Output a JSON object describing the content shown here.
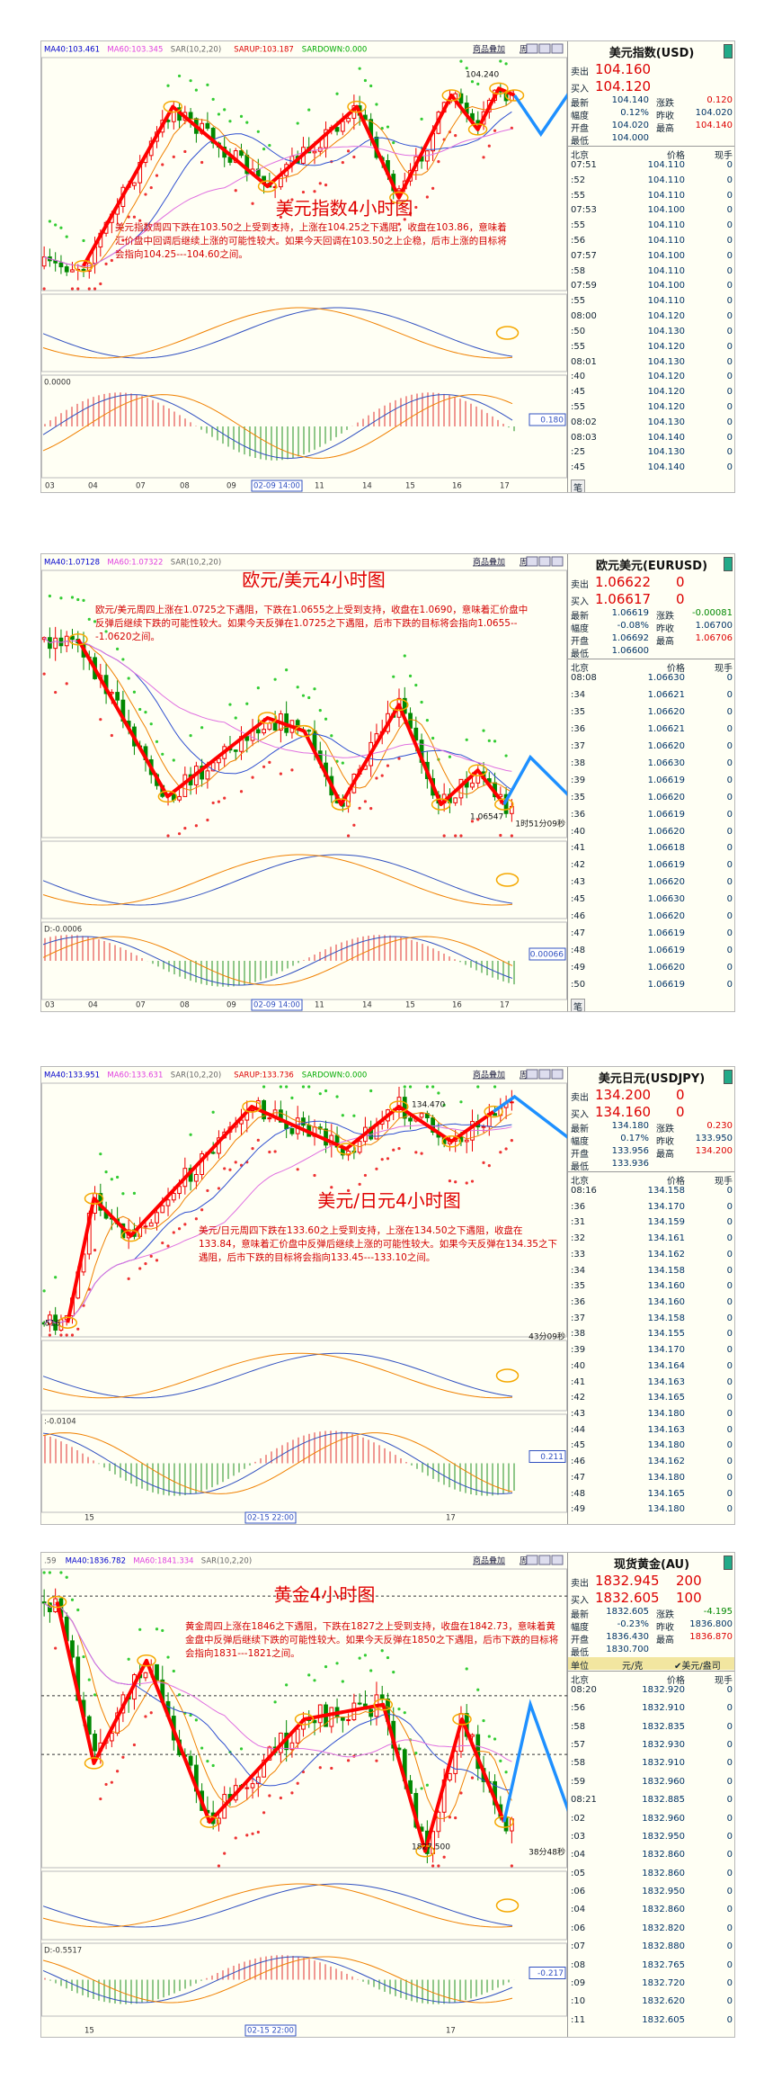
{
  "panels": [
    {
      "toolbar": [
        "商品叠加",
        "周期"
      ],
      "indicators": [
        "MA40:103.461",
        "MA60:103.345",
        "SAR(10,2,20)",
        "SARUP:103.187",
        "SARDOWN:0.000"
      ],
      "title": "美元指数4小时图",
      "commentary": "美元指数周四下跌在103.50之上受到支持，上涨在104.25之下遇阻，收盘在103.86，意味着汇价盘中回调后继续上涨的可能性较大。如果今天回调在103.50之上企稳，后市上涨的目标将会指向104.25---104.60之间。",
      "annotations": [
        "104.240"
      ],
      "macd_label": "0.0000",
      "macd_value": "0.180",
      "x_labels": [
        "03",
        "04",
        "07",
        "08",
        "09",
        "02-09 14:00",
        "11",
        "14",
        "15",
        "16",
        "17"
      ],
      "quote": {
        "name": "美元指数(USD)",
        "sell": [
          "卖出",
          "104.160"
        ],
        "buy": [
          "买入",
          "104.120"
        ],
        "stats": [
          [
            "最新",
            "104.140",
            "涨跌",
            "0.120"
          ],
          [
            "幅度",
            "0.12%",
            "昨收",
            "104.020"
          ],
          [
            "开盘",
            "104.020",
            "最高",
            "104.140"
          ],
          [
            "最低",
            "104.000"
          ]
        ],
        "header": [
          "北京",
          "价格",
          "现手"
        ],
        "rows": [
          [
            "07:51",
            "104.110",
            "0"
          ],
          [
            ":52",
            "104.110",
            "0"
          ],
          [
            ":55",
            "104.110",
            "0"
          ],
          [
            "07:53",
            "104.100",
            "0"
          ],
          [
            ":55",
            "104.110",
            "0"
          ],
          [
            ":56",
            "104.110",
            "0"
          ],
          [
            "07:57",
            "104.100",
            "0"
          ],
          [
            ":58",
            "104.110",
            "0"
          ],
          [
            "07:59",
            "104.100",
            "0"
          ],
          [
            ":55",
            "104.110",
            "0"
          ],
          [
            "08:00",
            "104.120",
            "0"
          ],
          [
            ":50",
            "104.130",
            "0"
          ],
          [
            ":55",
            "104.120",
            "0"
          ],
          [
            "08:01",
            "104.130",
            "0"
          ],
          [
            ":40",
            "104.120",
            "0"
          ],
          [
            ":45",
            "104.120",
            "0"
          ],
          [
            ":55",
            "104.120",
            "0"
          ],
          [
            "08:02",
            "104.130",
            "0"
          ],
          [
            "08:03",
            "104.140",
            "0"
          ],
          [
            ":25",
            "104.130",
            "0"
          ],
          [
            ":45",
            "104.140",
            "0"
          ]
        ],
        "footer": "笔"
      }
    },
    {
      "toolbar": [
        "商品叠加",
        "周期"
      ],
      "indicators": [
        "MA40:1.07128",
        "MA60:1.07322",
        "SAR(10,2,20)"
      ],
      "title": "欧元/美元4小时图",
      "commentary": "欧元/美元周四上涨在1.0725之下遇阻，下跌在1.0655之上受到支持，收盘在1.0690，意味着汇价盘中反弹后继续下跌的可能性较大。如果今天反弹在1.0725之下遇阻，后市下跌的目标将会指向1.0655---1.0620之间。",
      "annotations": [
        "1.06547",
        "1时51分09秒"
      ],
      "macd_label": "D:-0.0006",
      "macd_value": "0.00066",
      "x_labels": [
        "03",
        "04",
        "07",
        "08",
        "09",
        "02-09 14:00",
        "11",
        "14",
        "15",
        "16",
        "17"
      ],
      "quote": {
        "name": "欧元美元(EURUSD)",
        "sell": [
          "卖出",
          "1.06622",
          "0"
        ],
        "buy": [
          "买入",
          "1.06617",
          "0"
        ],
        "stats": [
          [
            "最新",
            "1.06619",
            "涨跌",
            "-0.00081"
          ],
          [
            "幅度",
            "-0.08%",
            "昨收",
            "1.06700"
          ],
          [
            "开盘",
            "1.06692",
            "最高",
            "1.06706"
          ],
          [
            "最低",
            "1.06600"
          ]
        ],
        "header": [
          "北京",
          "价格",
          "现手"
        ],
        "rows": [
          [
            "08:08",
            "1.06630",
            "0"
          ],
          [
            ":34",
            "1.06621",
            "0"
          ],
          [
            ":35",
            "1.06620",
            "0"
          ],
          [
            ":36",
            "1.06621",
            "0"
          ],
          [
            ":37",
            "1.06620",
            "0"
          ],
          [
            ":38",
            "1.06630",
            "0"
          ],
          [
            ":39",
            "1.06619",
            "0"
          ],
          [
            ":35",
            "1.06620",
            "0"
          ],
          [
            ":36",
            "1.06619",
            "0"
          ],
          [
            ":40",
            "1.06620",
            "0"
          ],
          [
            ":41",
            "1.06618",
            "0"
          ],
          [
            ":42",
            "1.06619",
            "0"
          ],
          [
            ":43",
            "1.06620",
            "0"
          ],
          [
            ":45",
            "1.06630",
            "0"
          ],
          [
            ":46",
            "1.06620",
            "0"
          ],
          [
            ":47",
            "1.06619",
            "0"
          ],
          [
            ":48",
            "1.06619",
            "0"
          ],
          [
            ":49",
            "1.06620",
            "0"
          ],
          [
            ":50",
            "1.06619",
            "0"
          ]
        ],
        "footer": "笔"
      }
    },
    {
      "toolbar": [
        "商品叠加",
        "周期"
      ],
      "indicators": [
        "MA40:133.951",
        "MA60:133.631",
        "SAR(10,2,20)",
        "SARUP:133.736",
        "SARDOWN:0.000"
      ],
      "title": "美元/日元4小时图",
      "commentary": "美元/日元周四下跌在133.60之上受到支持，上涨在134.50之下遇阻，收盘在133.84，意味着汇价盘中反弹后继续上涨的可能性较大。如果今天反弹在134.35之下遇阻，后市下跌的目标将会指向133.45---133.10之间。",
      "annotations": [
        "134.470",
        "516",
        "43分09秒"
      ],
      "macd_label": ":-0.0104",
      "macd_value": "0.211",
      "x_labels": [
        "15",
        "02-15 22:00",
        "17"
      ],
      "quote": {
        "name": "美元日元(USDJPY)",
        "sell": [
          "卖出",
          "134.200",
          "0"
        ],
        "buy": [
          "买入",
          "134.160",
          "0"
        ],
        "stats": [
          [
            "最新",
            "134.180",
            "涨跌",
            "0.230"
          ],
          [
            "幅度",
            "0.17%",
            "昨收",
            "133.950"
          ],
          [
            "开盘",
            "133.956",
            "最高",
            "134.200"
          ],
          [
            "最低",
            "133.936"
          ]
        ],
        "header": [
          "北京",
          "价格",
          "现手"
        ],
        "rows": [
          [
            "08:16",
            "134.158",
            "0"
          ],
          [
            ":36",
            "134.170",
            "0"
          ],
          [
            ":31",
            "134.159",
            "0"
          ],
          [
            ":32",
            "134.161",
            "0"
          ],
          [
            ":33",
            "134.162",
            "0"
          ],
          [
            ":34",
            "134.158",
            "0"
          ],
          [
            ":35",
            "134.160",
            "0"
          ],
          [
            ":36",
            "134.160",
            "0"
          ],
          [
            ":37",
            "134.158",
            "0"
          ],
          [
            ":38",
            "134.155",
            "0"
          ],
          [
            ":39",
            "134.170",
            "0"
          ],
          [
            ":40",
            "134.164",
            "0"
          ],
          [
            ":41",
            "134.163",
            "0"
          ],
          [
            ":42",
            "134.165",
            "0"
          ],
          [
            ":43",
            "134.180",
            "0"
          ],
          [
            ":44",
            "134.163",
            "0"
          ],
          [
            ":45",
            "134.180",
            "0"
          ],
          [
            ":46",
            "134.162",
            "0"
          ],
          [
            ":47",
            "134.180",
            "0"
          ],
          [
            ":48",
            "134.165",
            "0"
          ],
          [
            ":49",
            "134.180",
            "0"
          ]
        ]
      }
    },
    {
      "toolbar": [
        "商品叠加",
        "周期"
      ],
      "indicators": [
        ".59",
        "MA40:1836.782",
        "MA60:1841.334",
        "SAR(10,2,20)"
      ],
      "title": "黄金4小时图",
      "commentary": "黄金周四上涨在1846之下遇阻，下跌在1827之上受到支持，收盘在1842.73，意味着黄金盘中反弹后继续下跌的可能性较大。如果今天反弹在1850之下遇阻，后市下跌的目标将会指向1831---1821之间。",
      "annotations": [
        "1827.500",
        "38分48秒"
      ],
      "macd_label": "D:-0.5517",
      "macd_value": "-0.217",
      "x_labels": [
        "15",
        "02-15 22:00",
        "17"
      ],
      "quote": {
        "name": "现货黄金(AU)",
        "sell": [
          "卖出",
          "1832.945",
          "200"
        ],
        "buy": [
          "买入",
          "1832.605",
          "100"
        ],
        "stats": [
          [
            "最新",
            "1832.605",
            "涨跌",
            "-4.195"
          ],
          [
            "幅度",
            "-0.23%",
            "昨收",
            "1836.800"
          ],
          [
            "开盘",
            "1836.430",
            "最高",
            "1836.870"
          ],
          [
            "最低",
            "1830.700"
          ]
        ],
        "unit": [
          "单位",
          "元/克",
          "✔美元/盎司"
        ],
        "header": [
          "北京",
          "价格",
          "现手"
        ],
        "rows": [
          [
            "08:20",
            "1832.920",
            "0"
          ],
          [
            ":56",
            "1832.910",
            "0"
          ],
          [
            ":58",
            "1832.835",
            "0"
          ],
          [
            ":57",
            "1832.930",
            "0"
          ],
          [
            ":58",
            "1832.910",
            "0"
          ],
          [
            ":59",
            "1832.960",
            "0"
          ],
          [
            "08:21",
            "1832.885",
            "0"
          ],
          [
            ":02",
            "1832.960",
            "0"
          ],
          [
            ":03",
            "1832.950",
            "0"
          ],
          [
            ":04",
            "1832.860",
            "0"
          ],
          [
            ":05",
            "1832.860",
            "0"
          ],
          [
            ":06",
            "1832.950",
            "0"
          ],
          [
            ":04",
            "1832.860",
            "0"
          ],
          [
            ":06",
            "1832.820",
            "0"
          ],
          [
            ":07",
            "1832.880",
            "0"
          ],
          [
            ":08",
            "1832.765",
            "0"
          ],
          [
            ":09",
            "1832.720",
            "0"
          ],
          [
            ":10",
            "1832.620",
            "0"
          ],
          [
            ":11",
            "1832.605",
            "0"
          ]
        ]
      }
    }
  ]
}
